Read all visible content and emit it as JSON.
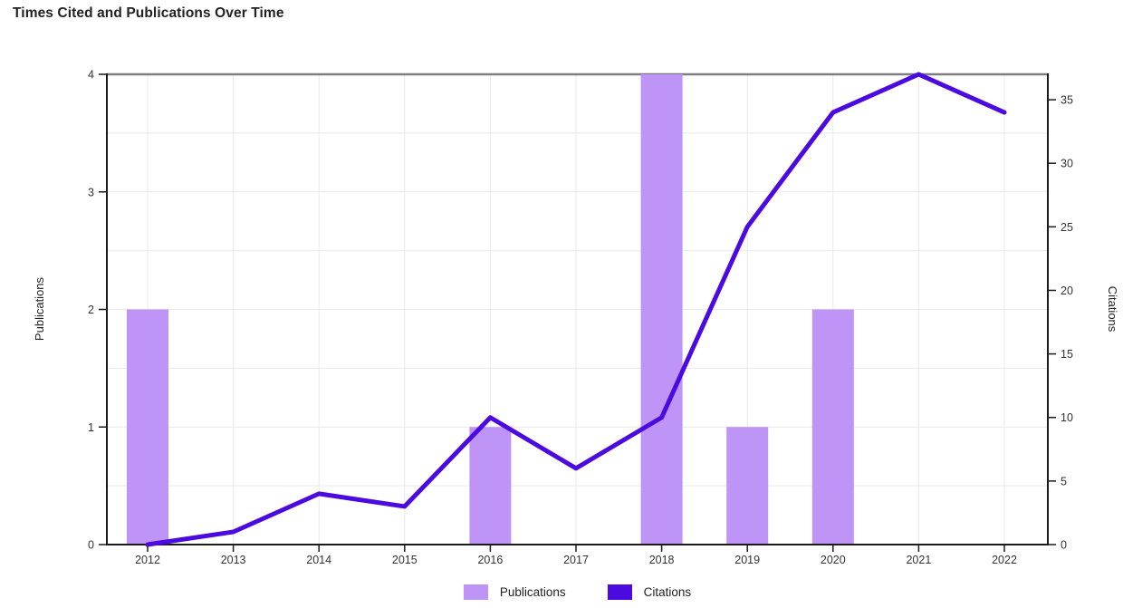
{
  "page": {
    "title": "Times Cited and Publications Over Time"
  },
  "colors": {
    "bar": "#BE94F7",
    "line": "#4B0AE0",
    "grid": "#E9E9E9",
    "axis": "#1A1A1A",
    "frame_top": "#7F7F7F",
    "tick_text": "#333333",
    "title_text": "#222222"
  },
  "chart_data": {
    "type": "bar+line",
    "title": "Times Cited and Publications Over Time",
    "categories": [
      "2012",
      "2013",
      "2014",
      "2015",
      "2016",
      "2017",
      "2018",
      "2019",
      "2020",
      "2021",
      "2022"
    ],
    "series": [
      {
        "name": "Publications",
        "type": "bar",
        "axis": "left",
        "color": "#BE94F7",
        "values": [
          2,
          0,
          0,
          0,
          1,
          0,
          4,
          1,
          2,
          0,
          0
        ]
      },
      {
        "name": "Citations",
        "type": "line",
        "axis": "right",
        "color": "#4B0AE0",
        "values": [
          0,
          1,
          4,
          3,
          10,
          6,
          10,
          25,
          34,
          37,
          34
        ]
      }
    ],
    "left_axis": {
      "label": "Publications",
      "ticks": [
        0,
        1,
        2,
        3,
        4
      ],
      "range": [
        0,
        4
      ]
    },
    "right_axis": {
      "label": "Citations",
      "ticks": [
        0,
        5,
        10,
        15,
        20,
        25,
        30,
        35
      ],
      "range": [
        0,
        37
      ]
    },
    "legend": {
      "position": "bottom",
      "items": [
        "Publications",
        "Citations"
      ]
    },
    "grid": true
  }
}
